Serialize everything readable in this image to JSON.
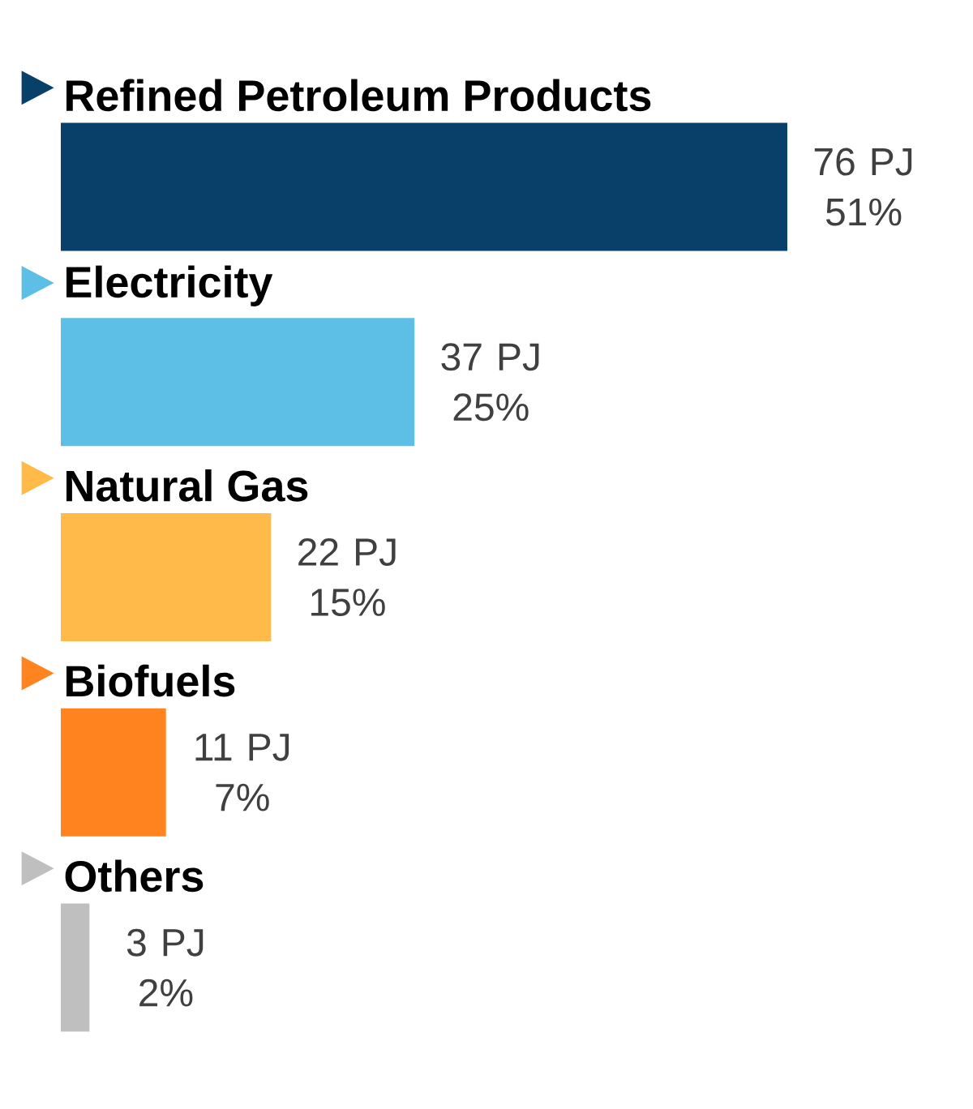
{
  "chart_data": {
    "type": "bar",
    "orientation": "horizontal",
    "categories": [
      "Refined Petroleum Products",
      "Electricity",
      "Natural Gas",
      "Biofuels",
      "Others"
    ],
    "values": [
      76,
      37,
      22,
      11,
      3
    ],
    "colors": [
      "#08406a",
      "#5dbee6",
      "#ffba4a",
      "#ff8420",
      "#bfbfbf"
    ],
    "value_labels": [
      "76 PJ 51%",
      "37 PJ 25%",
      "22 PJ 15%",
      "11 PJ 7%",
      "3 PJ 2%"
    ]
  }
}
